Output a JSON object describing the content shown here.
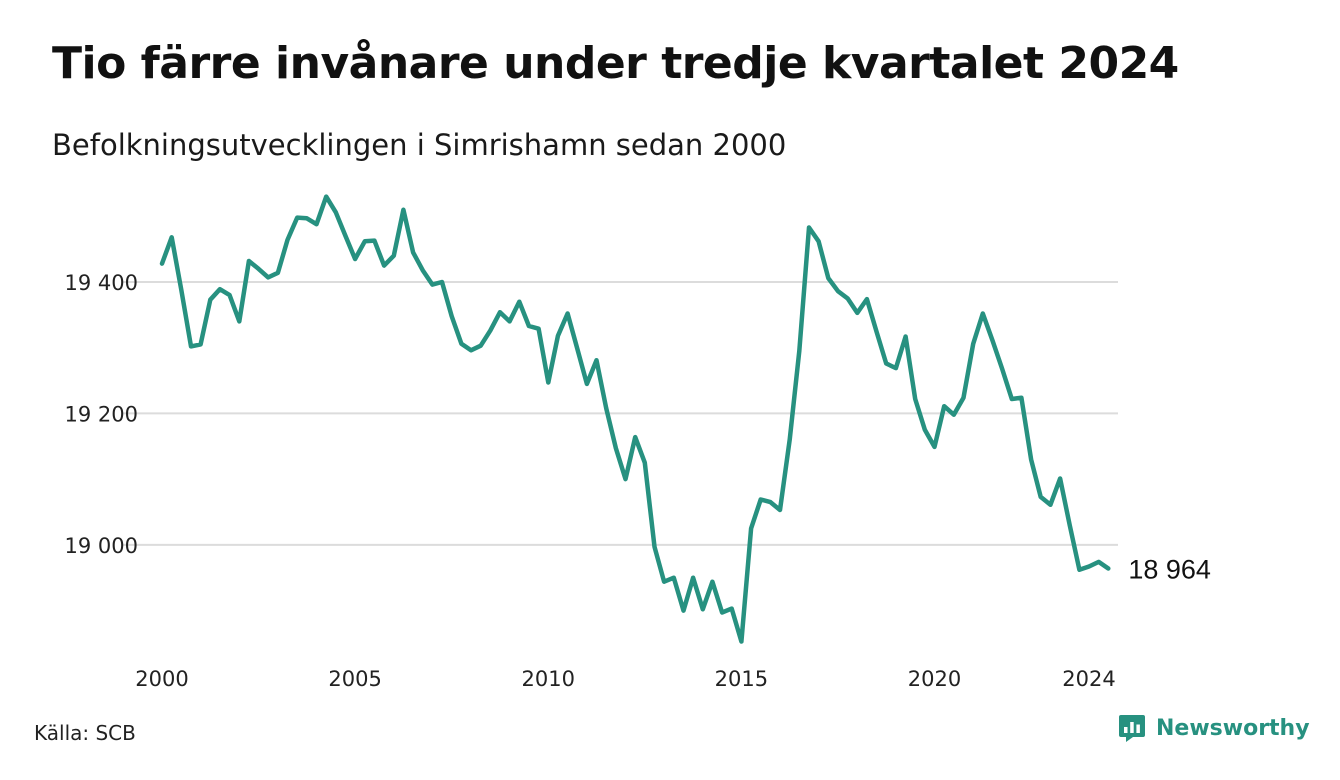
{
  "header": {
    "title": "Tio färre invånare under tredje kvartalet 2024",
    "subtitle": "Befolkningsutvecklingen i Simrishamn sedan 2000"
  },
  "footer": {
    "source": "Källa: SCB",
    "brand": "Newsworthy"
  },
  "colors": {
    "line": "#279180",
    "grid": "#dcdcdc",
    "text": "#111111",
    "brand": "#279180"
  },
  "icons": {
    "brand_logo": "newsworthy-logo-icon"
  },
  "chart_data": {
    "type": "line",
    "title": "Tio färre invånare under tredje kvartalet 2024",
    "subtitle": "Befolkningsutvecklingen i Simrishamn sedan 2000",
    "xlabel": "",
    "ylabel": "",
    "x_ticks": [
      2000,
      2005,
      2010,
      2015,
      2020,
      2024
    ],
    "y_ticks": [
      {
        "value": 19000,
        "label": "19 000"
      },
      {
        "value": 19200,
        "label": "19 200"
      },
      {
        "value": 19400,
        "label": "19 400"
      }
    ],
    "xlim": [
      2000,
      2024.75
    ],
    "ylim": [
      18840,
      19540
    ],
    "grid": true,
    "end_label": "18 964",
    "series": [
      {
        "x": [
          2000.0,
          2000.25,
          2000.5,
          2000.75,
          2001.0,
          2001.25,
          2001.5,
          2001.75,
          2002.0,
          2002.25,
          2002.5,
          2002.75,
          2003.0,
          2003.25,
          2003.5,
          2003.75,
          2004.0,
          2004.25,
          2004.5,
          2004.75,
          2005.0,
          2005.25,
          2005.5,
          2005.75,
          2006.0,
          2006.25,
          2006.5,
          2006.75,
          2007.0,
          2007.25,
          2007.5,
          2007.75,
          2008.0,
          2008.25,
          2008.5,
          2008.75,
          2009.0,
          2009.25,
          2009.5,
          2009.75,
          2010.0,
          2010.25,
          2010.5,
          2010.75,
          2011.0,
          2011.25,
          2011.5,
          2011.75,
          2012.0,
          2012.25,
          2012.5,
          2012.75,
          2013.0,
          2013.25,
          2013.5,
          2013.75,
          2014.0,
          2014.25,
          2014.5,
          2014.75,
          2015.0,
          2015.25,
          2015.5,
          2015.75,
          2016.0,
          2016.25,
          2016.5,
          2016.75,
          2017.0,
          2017.25,
          2017.5,
          2017.75,
          2018.0,
          2018.25,
          2018.5,
          2018.75,
          2019.0,
          2019.25,
          2019.5,
          2019.75,
          2020.0,
          2020.25,
          2020.5,
          2020.75,
          2021.0,
          2021.25,
          2021.5,
          2021.75,
          2022.0,
          2022.25,
          2022.5,
          2022.75,
          2023.0,
          2023.25,
          2023.5,
          2023.75,
          2024.0,
          2024.25,
          2024.5
        ],
        "values": [
          19428,
          19468,
          19388,
          19302,
          19305,
          19373,
          19389,
          19380,
          19340,
          19432,
          19420,
          19407,
          19414,
          19464,
          19498,
          19497,
          19488,
          19530,
          19506,
          19470,
          19435,
          19462,
          19463,
          19425,
          19440,
          19510,
          19445,
          19418,
          19396,
          19400,
          19348,
          19306,
          19296,
          19303,
          19326,
          19354,
          19340,
          19370,
          19333,
          19329,
          19247,
          19318,
          19352,
          19299,
          19245,
          19281,
          19208,
          19147,
          19100,
          19164,
          19125,
          18997,
          18944,
          18950,
          18900,
          18950,
          18902,
          18944,
          18897,
          18903,
          18853,
          19025,
          19069,
          19065,
          19053,
          19160,
          19295,
          19483,
          19462,
          19406,
          19386,
          19375,
          19353,
          19374,
          19324,
          19276,
          19269,
          19317,
          19222,
          19175,
          19149,
          19211,
          19198,
          19224,
          19306,
          19352,
          19311,
          19268,
          19222,
          19224,
          19130,
          19073,
          19061,
          19101,
          19030,
          18962,
          18967,
          18974,
          18964
        ]
      }
    ]
  }
}
